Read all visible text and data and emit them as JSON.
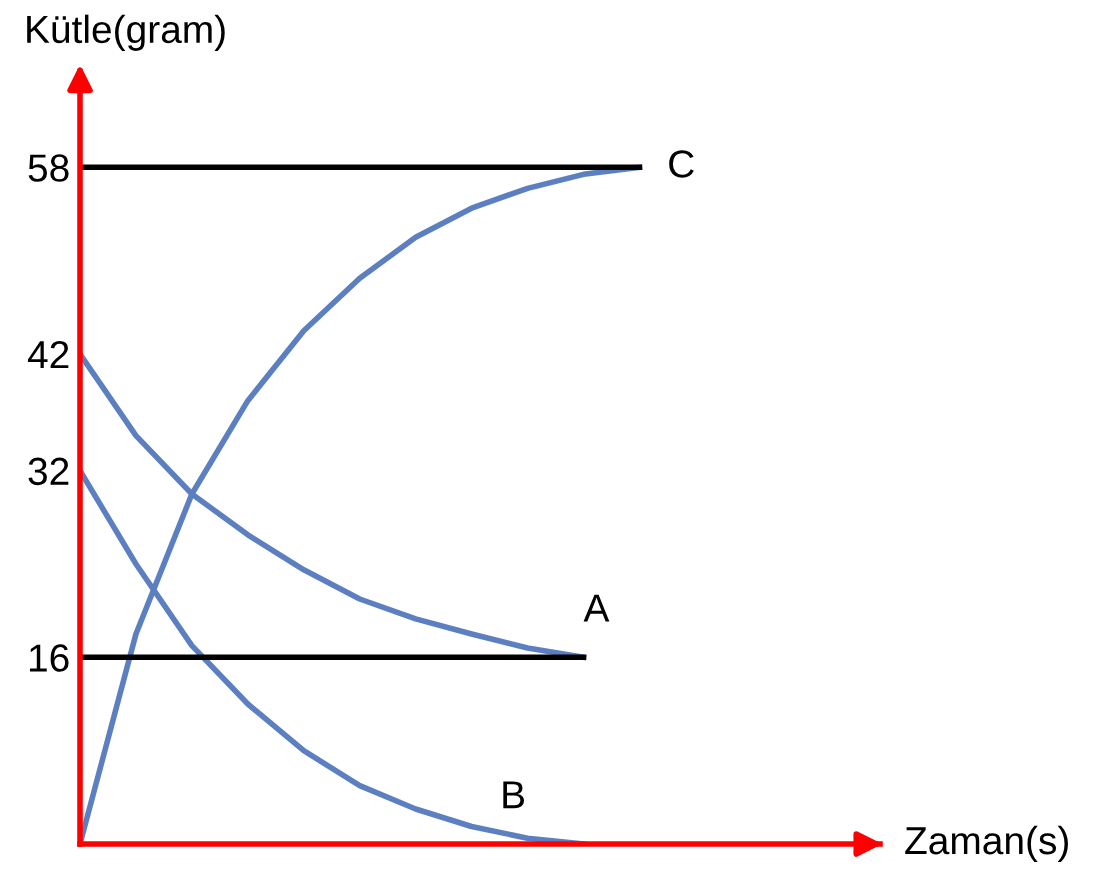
{
  "chart_data": {
    "type": "line",
    "ylabel": "Kütle(gram)",
    "categories": [
      null,
      null,
      null,
      null,
      null,
      null,
      null,
      null,
      null,
      null,
      null
    ],
    "ylim": [
      0,
      66
    ],
    "yticks": [
      16,
      32,
      42,
      58
    ],
    "tick_labels": "y",
    "grid": false,
    "legend": false,
    "marker": "none",
    "line_style": "solid",
    "series": [
      {
        "color": "#5b7fc0",
        "values": [
          42,
          35,
          30,
          26.5,
          23.5,
          21,
          19.3,
          18,
          16.8,
          16,
          null
        ]
      },
      {
        "color": "#5b7fc0",
        "values": [
          32,
          24,
          17,
          12,
          8,
          5,
          3,
          1.5,
          0.5,
          0,
          null
        ]
      },
      {
        "color": "#5b7fc0",
        "values": [
          0,
          18,
          30,
          38,
          44,
          48.5,
          52,
          54.5,
          56.2,
          57.4,
          58
        ]
      },
      {
        "color": "#000000",
        "values": [
          58,
          58,
          58,
          58,
          58,
          58,
          58,
          58,
          58,
          58,
          58
        ]
      },
      {
        "color": "#000000",
        "values": [
          16,
          16,
          16,
          16,
          16,
          16,
          16,
          16,
          16,
          16,
          null
        ]
      }
    ],
    "annotations": [
      "A",
      "B",
      "C",
      "Zaman(s)"
    ]
  }
}
